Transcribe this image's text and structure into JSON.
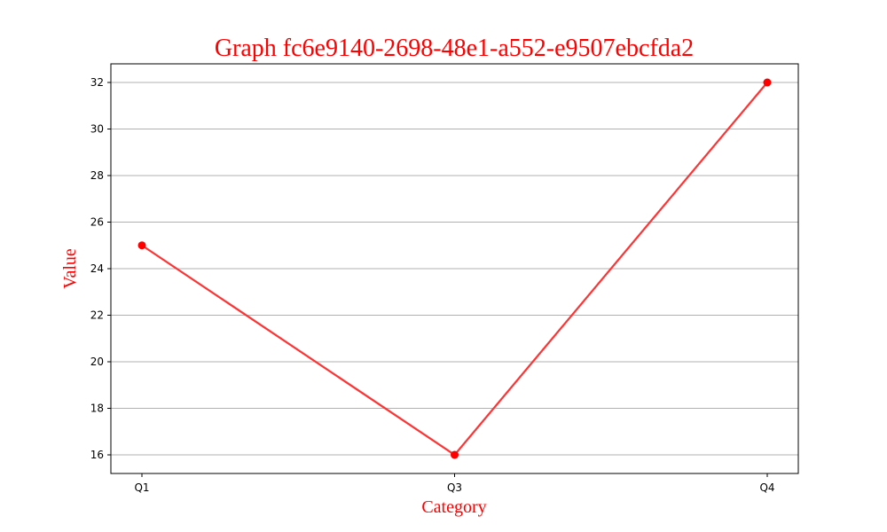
{
  "chart_data": {
    "type": "line",
    "title": "Graph fc6e9140-2698-48e1-a552-e9507ebcfda2",
    "xlabel": "Category",
    "ylabel": "Value",
    "categories": [
      "Q1",
      "Q3",
      "Q4"
    ],
    "series": [
      {
        "values": [
          25,
          16,
          32
        ]
      }
    ],
    "ylim": [
      15.2,
      32.8
    ],
    "yticks": [
      16,
      18,
      20,
      22,
      24,
      26,
      28,
      30,
      32
    ],
    "grid": "horizontal",
    "legend": "none"
  },
  "colors": {
    "title": "#ff0000",
    "axis_labels": "#ff0000",
    "line": "#ff3333",
    "marker": "#ff0000",
    "grid": "#b0b0b0",
    "axes": "#000000"
  }
}
